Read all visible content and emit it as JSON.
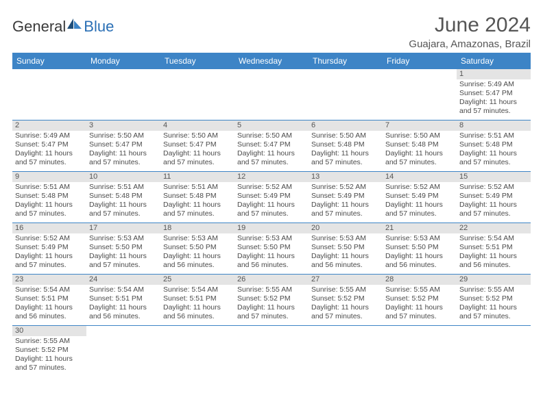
{
  "logo": {
    "part1": "General",
    "part2": "Blue"
  },
  "title": "June 2024",
  "location": "Guajara, Amazonas, Brazil",
  "colors": {
    "header_bg": "#3d84c6",
    "header_text": "#ffffff",
    "daynum_bg": "#e4e4e4",
    "row_border": "#3d84c6",
    "text": "#4a4a4a"
  },
  "weekdays": [
    "Sunday",
    "Monday",
    "Tuesday",
    "Wednesday",
    "Thursday",
    "Friday",
    "Saturday"
  ],
  "weeks": [
    [
      {
        "day": "",
        "lines": []
      },
      {
        "day": "",
        "lines": []
      },
      {
        "day": "",
        "lines": []
      },
      {
        "day": "",
        "lines": []
      },
      {
        "day": "",
        "lines": []
      },
      {
        "day": "",
        "lines": []
      },
      {
        "day": "1",
        "lines": [
          "Sunrise: 5:49 AM",
          "Sunset: 5:47 PM",
          "Daylight: 11 hours and 57 minutes."
        ]
      }
    ],
    [
      {
        "day": "2",
        "lines": [
          "Sunrise: 5:49 AM",
          "Sunset: 5:47 PM",
          "Daylight: 11 hours and 57 minutes."
        ]
      },
      {
        "day": "3",
        "lines": [
          "Sunrise: 5:50 AM",
          "Sunset: 5:47 PM",
          "Daylight: 11 hours and 57 minutes."
        ]
      },
      {
        "day": "4",
        "lines": [
          "Sunrise: 5:50 AM",
          "Sunset: 5:47 PM",
          "Daylight: 11 hours and 57 minutes."
        ]
      },
      {
        "day": "5",
        "lines": [
          "Sunrise: 5:50 AM",
          "Sunset: 5:47 PM",
          "Daylight: 11 hours and 57 minutes."
        ]
      },
      {
        "day": "6",
        "lines": [
          "Sunrise: 5:50 AM",
          "Sunset: 5:48 PM",
          "Daylight: 11 hours and 57 minutes."
        ]
      },
      {
        "day": "7",
        "lines": [
          "Sunrise: 5:50 AM",
          "Sunset: 5:48 PM",
          "Daylight: 11 hours and 57 minutes."
        ]
      },
      {
        "day": "8",
        "lines": [
          "Sunrise: 5:51 AM",
          "Sunset: 5:48 PM",
          "Daylight: 11 hours and 57 minutes."
        ]
      }
    ],
    [
      {
        "day": "9",
        "lines": [
          "Sunrise: 5:51 AM",
          "Sunset: 5:48 PM",
          "Daylight: 11 hours and 57 minutes."
        ]
      },
      {
        "day": "10",
        "lines": [
          "Sunrise: 5:51 AM",
          "Sunset: 5:48 PM",
          "Daylight: 11 hours and 57 minutes."
        ]
      },
      {
        "day": "11",
        "lines": [
          "Sunrise: 5:51 AM",
          "Sunset: 5:48 PM",
          "Daylight: 11 hours and 57 minutes."
        ]
      },
      {
        "day": "12",
        "lines": [
          "Sunrise: 5:52 AM",
          "Sunset: 5:49 PM",
          "Daylight: 11 hours and 57 minutes."
        ]
      },
      {
        "day": "13",
        "lines": [
          "Sunrise: 5:52 AM",
          "Sunset: 5:49 PM",
          "Daylight: 11 hours and 57 minutes."
        ]
      },
      {
        "day": "14",
        "lines": [
          "Sunrise: 5:52 AM",
          "Sunset: 5:49 PM",
          "Daylight: 11 hours and 57 minutes."
        ]
      },
      {
        "day": "15",
        "lines": [
          "Sunrise: 5:52 AM",
          "Sunset: 5:49 PM",
          "Daylight: 11 hours and 57 minutes."
        ]
      }
    ],
    [
      {
        "day": "16",
        "lines": [
          "Sunrise: 5:52 AM",
          "Sunset: 5:49 PM",
          "Daylight: 11 hours and 57 minutes."
        ]
      },
      {
        "day": "17",
        "lines": [
          "Sunrise: 5:53 AM",
          "Sunset: 5:50 PM",
          "Daylight: 11 hours and 57 minutes."
        ]
      },
      {
        "day": "18",
        "lines": [
          "Sunrise: 5:53 AM",
          "Sunset: 5:50 PM",
          "Daylight: 11 hours and 56 minutes."
        ]
      },
      {
        "day": "19",
        "lines": [
          "Sunrise: 5:53 AM",
          "Sunset: 5:50 PM",
          "Daylight: 11 hours and 56 minutes."
        ]
      },
      {
        "day": "20",
        "lines": [
          "Sunrise: 5:53 AM",
          "Sunset: 5:50 PM",
          "Daylight: 11 hours and 56 minutes."
        ]
      },
      {
        "day": "21",
        "lines": [
          "Sunrise: 5:53 AM",
          "Sunset: 5:50 PM",
          "Daylight: 11 hours and 56 minutes."
        ]
      },
      {
        "day": "22",
        "lines": [
          "Sunrise: 5:54 AM",
          "Sunset: 5:51 PM",
          "Daylight: 11 hours and 56 minutes."
        ]
      }
    ],
    [
      {
        "day": "23",
        "lines": [
          "Sunrise: 5:54 AM",
          "Sunset: 5:51 PM",
          "Daylight: 11 hours and 56 minutes."
        ]
      },
      {
        "day": "24",
        "lines": [
          "Sunrise: 5:54 AM",
          "Sunset: 5:51 PM",
          "Daylight: 11 hours and 56 minutes."
        ]
      },
      {
        "day": "25",
        "lines": [
          "Sunrise: 5:54 AM",
          "Sunset: 5:51 PM",
          "Daylight: 11 hours and 56 minutes."
        ]
      },
      {
        "day": "26",
        "lines": [
          "Sunrise: 5:55 AM",
          "Sunset: 5:52 PM",
          "Daylight: 11 hours and 57 minutes."
        ]
      },
      {
        "day": "27",
        "lines": [
          "Sunrise: 5:55 AM",
          "Sunset: 5:52 PM",
          "Daylight: 11 hours and 57 minutes."
        ]
      },
      {
        "day": "28",
        "lines": [
          "Sunrise: 5:55 AM",
          "Sunset: 5:52 PM",
          "Daylight: 11 hours and 57 minutes."
        ]
      },
      {
        "day": "29",
        "lines": [
          "Sunrise: 5:55 AM",
          "Sunset: 5:52 PM",
          "Daylight: 11 hours and 57 minutes."
        ]
      }
    ],
    [
      {
        "day": "30",
        "lines": [
          "Sunrise: 5:55 AM",
          "Sunset: 5:52 PM",
          "Daylight: 11 hours and 57 minutes."
        ]
      },
      {
        "day": "",
        "lines": []
      },
      {
        "day": "",
        "lines": []
      },
      {
        "day": "",
        "lines": []
      },
      {
        "day": "",
        "lines": []
      },
      {
        "day": "",
        "lines": []
      },
      {
        "day": "",
        "lines": []
      }
    ]
  ]
}
